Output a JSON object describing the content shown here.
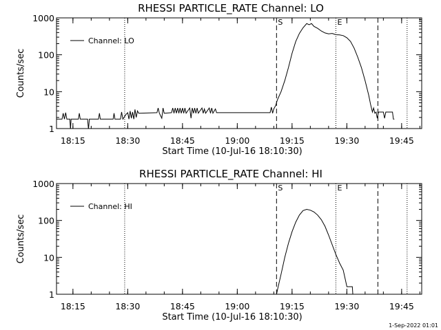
{
  "chart_data": [
    {
      "type": "line",
      "title": "RHESSI PARTICLE_RATE Channel: LO",
      "xlabel": "Start Time (10-Jul-16 18:10:30)",
      "ylabel": "Counts/sec",
      "yscale": "log",
      "xlim": [
        "18:10:30",
        "19:50:30"
      ],
      "ylim": [
        1,
        1000
      ],
      "x_ticks": [
        "18:15",
        "18:30",
        "18:45",
        "19:00",
        "19:15",
        "19:30",
        "19:45"
      ],
      "y_ticks": [
        "1",
        "10",
        "100",
        "1000"
      ],
      "legend": {
        "position": "top-left",
        "label": "Channel: LO"
      },
      "markers": {
        "start": "S",
        "end": "E"
      },
      "series": [
        {
          "name": "Channel: LO",
          "color": "#000000",
          "points": [
            [
              "18:10:30",
              1.8
            ],
            [
              "18:12:00",
              1.8
            ],
            [
              "18:12:20",
              2.6
            ],
            [
              "18:12:40",
              1.8
            ],
            [
              "18:13:00",
              2.7
            ],
            [
              "18:13:20",
              1.8
            ],
            [
              "18:14:10",
              1.8
            ],
            [
              "18:14:20",
              0.95
            ],
            [
              "18:14:30",
              1.8
            ],
            [
              "18:16:30",
              1.8
            ],
            [
              "18:16:45",
              2.6
            ],
            [
              "18:17:00",
              1.8
            ],
            [
              "18:19:00",
              1.8
            ],
            [
              "18:19:15",
              0.95
            ],
            [
              "18:19:30",
              1.8
            ],
            [
              "18:22:00",
              1.8
            ],
            [
              "18:22:15",
              2.6
            ],
            [
              "18:22:30",
              1.8
            ],
            [
              "18:26:00",
              1.8
            ],
            [
              "18:26:15",
              2.6
            ],
            [
              "18:26:30",
              1.8
            ],
            [
              "18:28:00",
              1.8
            ],
            [
              "18:28:20",
              2.8
            ],
            [
              "18:28:40",
              1.8
            ],
            [
              "18:29:30",
              2.4
            ],
            [
              "18:30:00",
              2.7
            ],
            [
              "18:30:20",
              1.8
            ],
            [
              "18:30:40",
              3.0
            ],
            [
              "18:31:00",
              1.9
            ],
            [
              "18:31:20",
              2.8
            ],
            [
              "18:31:40",
              1.8
            ],
            [
              "18:32:00",
              3.3
            ],
            [
              "18:32:20",
              2.0
            ],
            [
              "18:32:40",
              3.0
            ],
            [
              "18:33:00",
              2.6
            ],
            [
              "18:38:00",
              2.7
            ],
            [
              "18:38:20",
              3.6
            ],
            [
              "18:38:40",
              2.6
            ],
            [
              "18:39:20",
              1.9
            ],
            [
              "18:39:40",
              3.6
            ],
            [
              "18:40:00",
              2.6
            ],
            [
              "18:42:00",
              2.7
            ],
            [
              "18:42:20",
              3.6
            ],
            [
              "18:42:40",
              2.6
            ],
            [
              "18:43:00",
              3.6
            ],
            [
              "18:43:20",
              2.6
            ],
            [
              "18:43:40",
              3.6
            ],
            [
              "18:44:00",
              2.6
            ],
            [
              "18:44:20",
              3.6
            ],
            [
              "18:44:40",
              2.6
            ],
            [
              "18:45:00",
              3.6
            ],
            [
              "18:45:20",
              2.6
            ],
            [
              "18:45:40",
              3.6
            ],
            [
              "18:46:00",
              2.6
            ],
            [
              "18:47:00",
              3.6
            ],
            [
              "18:47:20",
              1.9
            ],
            [
              "18:47:40",
              3.6
            ],
            [
              "18:48:00",
              2.6
            ],
            [
              "18:48:20",
              3.6
            ],
            [
              "18:48:40",
              2.6
            ],
            [
              "18:49:00",
              3.6
            ],
            [
              "18:49:20",
              2.6
            ],
            [
              "18:50:20",
              3.6
            ],
            [
              "18:50:40",
              2.6
            ],
            [
              "18:51:00",
              3.4
            ],
            [
              "18:51:20",
              2.6
            ],
            [
              "18:52:20",
              3.6
            ],
            [
              "18:52:40",
              2.6
            ],
            [
              "18:53:00",
              3.6
            ],
            [
              "18:53:20",
              2.6
            ],
            [
              "18:54:00",
              3.4
            ],
            [
              "18:54:20",
              2.7
            ],
            [
              "19:09:00",
              2.7
            ],
            [
              "19:09:20",
              3.8
            ],
            [
              "19:09:40",
              2.6
            ],
            [
              "19:10:00",
              3.4
            ],
            [
              "19:10:30",
              4.2
            ],
            [
              "19:11:00",
              6.0
            ],
            [
              "19:12:00",
              10
            ],
            [
              "19:13:00",
              20
            ],
            [
              "19:14:00",
              45
            ],
            [
              "19:15:00",
              110
            ],
            [
              "19:16:00",
              230
            ],
            [
              "19:17:00",
              380
            ],
            [
              "19:18:00",
              540
            ],
            [
              "19:19:00",
              700
            ],
            [
              "19:19:40",
              650
            ],
            [
              "19:20:20",
              700
            ],
            [
              "19:21:00",
              590
            ],
            [
              "19:22:00",
              520
            ],
            [
              "19:23:00",
              440
            ],
            [
              "19:24:00",
              390
            ],
            [
              "19:25:00",
              370
            ],
            [
              "19:26:00",
              380
            ],
            [
              "19:27:00",
              350
            ],
            [
              "19:28:00",
              345
            ],
            [
              "19:29:00",
              330
            ],
            [
              "19:30:00",
              290
            ],
            [
              "19:31:00",
              230
            ],
            [
              "19:32:00",
              150
            ],
            [
              "19:33:00",
              85
            ],
            [
              "19:34:00",
              45
            ],
            [
              "19:35:00",
              20
            ],
            [
              "19:36:00",
              8
            ],
            [
              "19:36:30",
              4.5
            ],
            [
              "19:37:00",
              2.8
            ],
            [
              "19:37:20",
              3.6
            ],
            [
              "19:37:40",
              2.6
            ],
            [
              "19:38:00",
              2.8
            ],
            [
              "19:38:20",
              1.9
            ],
            [
              "19:38:40",
              2.8
            ],
            [
              "19:40:00",
              2.8
            ],
            [
              "19:40:20",
              1.9
            ],
            [
              "19:40:40",
              2.8
            ],
            [
              "19:42:30",
              2.8
            ],
            [
              "19:42:45",
              1.8
            ],
            [
              "19:43:00",
              1.8
            ]
          ]
        }
      ]
    },
    {
      "type": "line",
      "title": "RHESSI PARTICLE_RATE Channel: HI",
      "xlabel": "Start Time (10-Jul-16 18:10:30)",
      "ylabel": "Counts/sec",
      "yscale": "log",
      "xlim": [
        "18:10:30",
        "19:50:30"
      ],
      "ylim": [
        1,
        1000
      ],
      "x_ticks": [
        "18:15",
        "18:30",
        "18:45",
        "19:00",
        "19:15",
        "19:30",
        "19:45"
      ],
      "y_ticks": [
        "1",
        "10",
        "100",
        "1000"
      ],
      "legend": {
        "position": "top-left",
        "label": "Channel: HI"
      },
      "markers": {
        "start": "S",
        "end": "E"
      },
      "series": [
        {
          "name": "Channel: HI",
          "color": "#000000",
          "points": [
            [
              "19:10:40",
              0.9
            ],
            [
              "19:11:00",
              1.3
            ],
            [
              "19:12:00",
              3.5
            ],
            [
              "19:13:00",
              10
            ],
            [
              "19:14:00",
              24
            ],
            [
              "19:15:00",
              50
            ],
            [
              "19:16:00",
              90
            ],
            [
              "19:17:00",
              140
            ],
            [
              "19:18:00",
              185
            ],
            [
              "19:19:00",
              200
            ],
            [
              "19:20:00",
              190
            ],
            [
              "19:21:00",
              170
            ],
            [
              "19:22:00",
              140
            ],
            [
              "19:23:00",
              105
            ],
            [
              "19:24:00",
              70
            ],
            [
              "19:25:00",
              40
            ],
            [
              "19:26:00",
              22
            ],
            [
              "19:27:00",
              12
            ],
            [
              "19:28:00",
              7
            ],
            [
              "19:29:00",
              4.5
            ],
            [
              "19:29:40",
              2.3
            ],
            [
              "19:30:00",
              1.6
            ],
            [
              "19:31:30",
              1.6
            ],
            [
              "19:31:40",
              0.9
            ]
          ]
        }
      ]
    }
  ],
  "timestamp": "1-Sep-2022 01:01"
}
